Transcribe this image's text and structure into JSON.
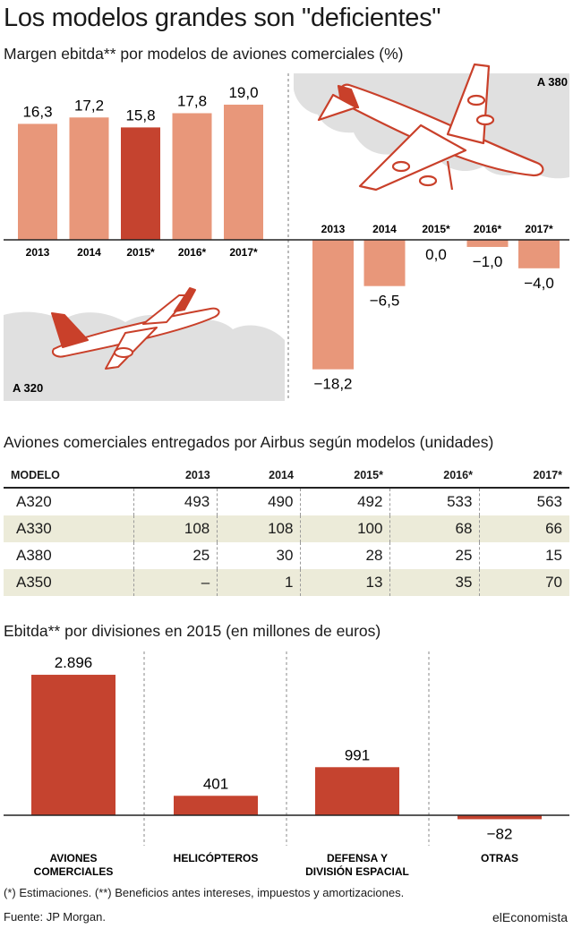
{
  "title": "Los modelos grandes son \"deficientes\"",
  "colors": {
    "light": "#e8977a",
    "dark": "#c5432f",
    "cloud": "#e0e0e0",
    "plane": "#c9402a",
    "shade": "#ecebd9"
  },
  "chart_data": [
    {
      "type": "bar",
      "title": "Margen ebitda** por modelos de aviones comerciales (%)",
      "label": "A 320",
      "categories": [
        "2013",
        "2014",
        "2015*",
        "2016*",
        "2017*"
      ],
      "values": [
        16.3,
        17.2,
        15.8,
        17.8,
        19.0
      ],
      "value_labels": [
        "16,3",
        "17,2",
        "15,8",
        "17,8",
        "19,0"
      ],
      "highlight_index": 2
    },
    {
      "type": "bar",
      "label": "A 380",
      "categories": [
        "2013",
        "2014",
        "2015*",
        "2016*",
        "2017*"
      ],
      "values": [
        -18.2,
        -6.5,
        0.0,
        -1.0,
        -4.0
      ],
      "value_labels": [
        "−18,2",
        "−6,5",
        "0,0",
        "−1,0",
        "−4,0"
      ]
    },
    {
      "type": "table",
      "title": "Aviones comerciales entregados por Airbus según modelos (unidades)",
      "columns": [
        "MODELO",
        "2013",
        "2014",
        "2015*",
        "2016*",
        "2017*"
      ],
      "rows": [
        [
          "A320",
          "493",
          "490",
          "492",
          "533",
          "563"
        ],
        [
          "A330",
          "108",
          "108",
          "100",
          "68",
          "66"
        ],
        [
          "A380",
          "25",
          "30",
          "28",
          "25",
          "15"
        ],
        [
          "A350",
          "–",
          "1",
          "13",
          "35",
          "70"
        ]
      ]
    },
    {
      "type": "bar",
      "title": "Ebitda** por divisiones en 2015 (en millones de euros)",
      "categories": [
        [
          "AVIONES",
          "COMERCIALES"
        ],
        [
          "HELICÓPTEROS"
        ],
        [
          "DEFENSA Y",
          "DIVISIÓN ESPACIAL"
        ],
        [
          "OTRAS"
        ]
      ],
      "values": [
        2896,
        401,
        991,
        -82
      ],
      "value_labels": [
        "2.896",
        "401",
        "991",
        "−82"
      ]
    }
  ],
  "footnote": "(*) Estimaciones. (**) Beneficios antes intereses, impuestos y amortizaciones.",
  "source": "Fuente: JP Morgan.",
  "brand": "elEconomista"
}
